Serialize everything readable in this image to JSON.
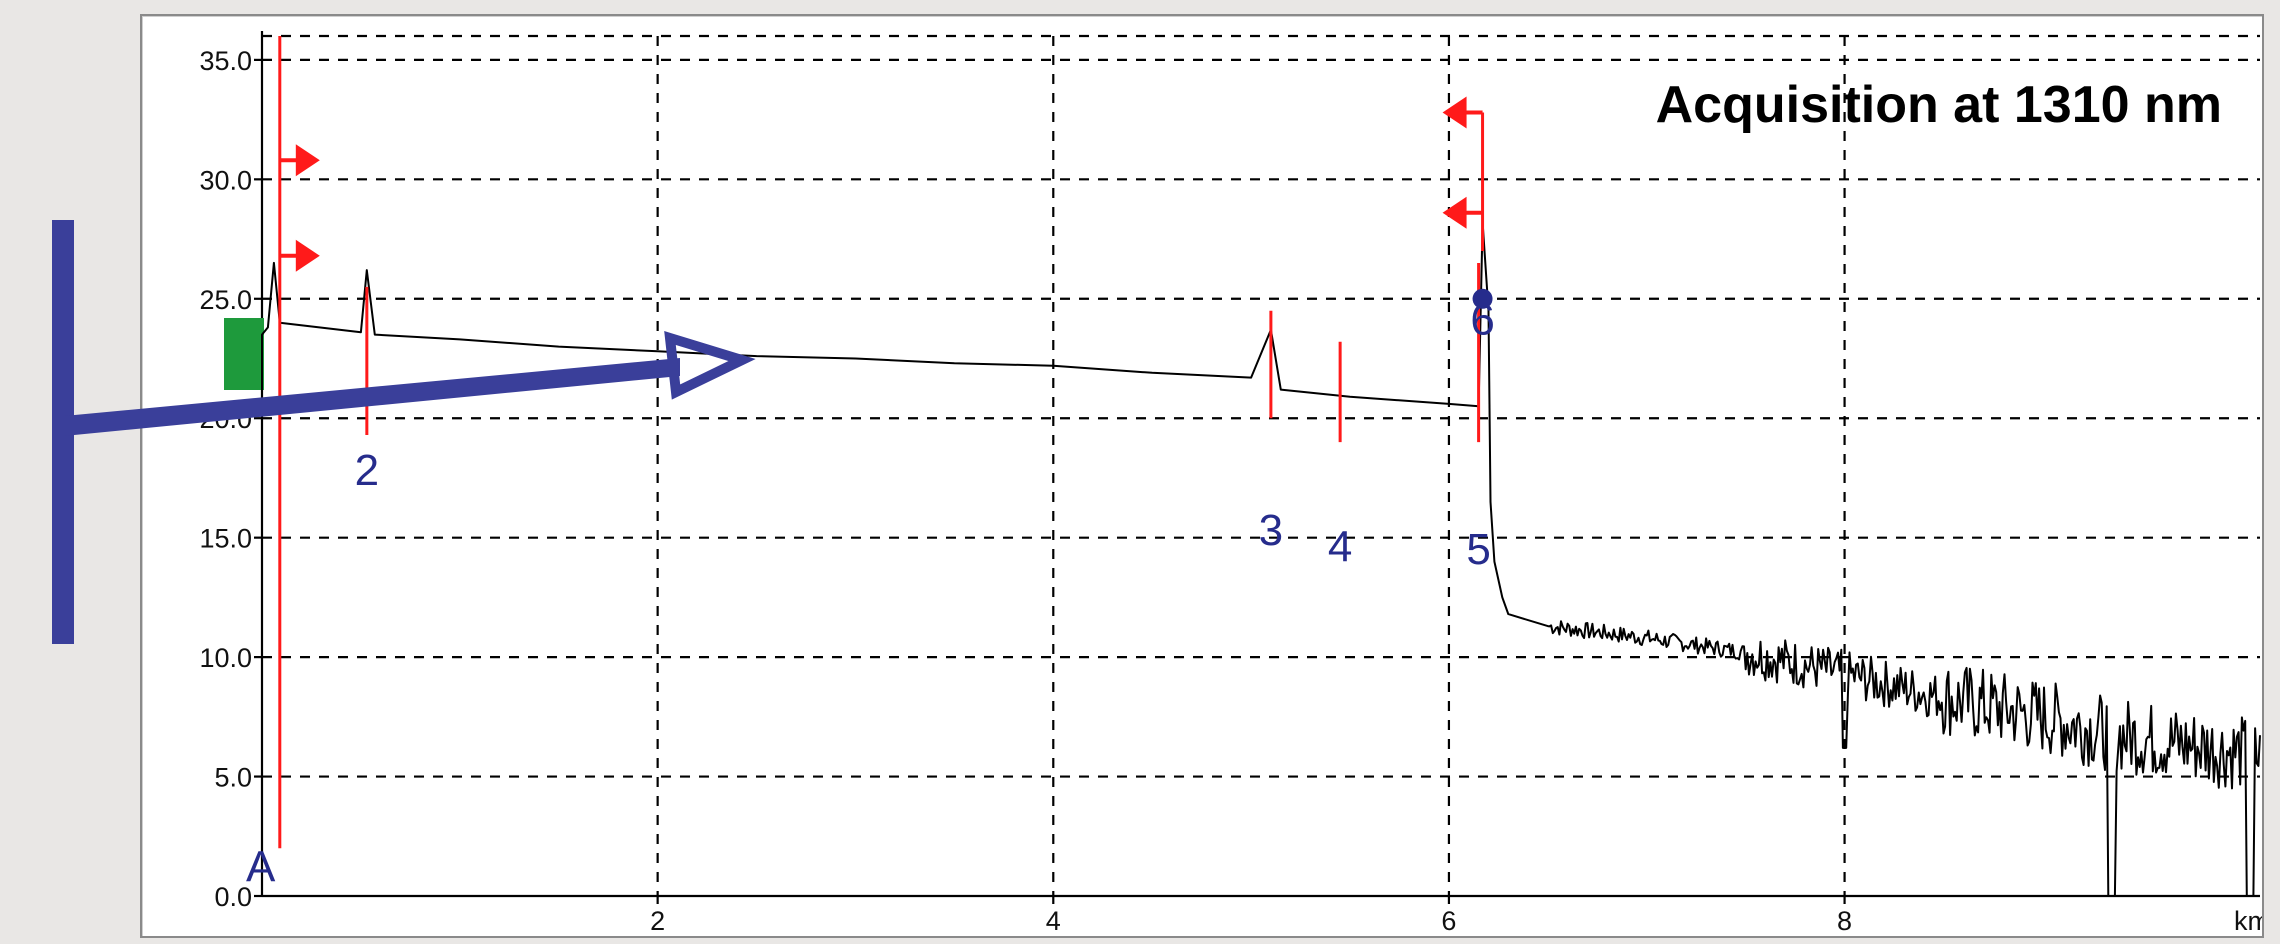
{
  "colors": {
    "background": "#e9e7e5",
    "plot_background": "#ffffff",
    "grid": "#000000",
    "trace": "#000000",
    "markers": "#ff1a1a",
    "event_labels": "#262c8c",
    "annotation_arrow": "#3a3f9a",
    "launch_block": "#1e9a3c"
  },
  "annotation": {
    "icon": "large-blue-t-arrow-icon",
    "description_label": ""
  },
  "chart_data": {
    "type": "line",
    "title": "Acquisition at 1310 nm",
    "xlabel": "km",
    "ylabel": "",
    "xlim": [
      0,
      10.1
    ],
    "ylim": [
      0,
      36
    ],
    "grid": true,
    "x_ticks": [
      2,
      4,
      6,
      8
    ],
    "x_tick_labels": [
      "2",
      "4",
      "6",
      "8"
    ],
    "x_unit_label": "km",
    "y_ticks": [
      0,
      5,
      10,
      15,
      20,
      25,
      30,
      35
    ],
    "y_tick_labels": [
      "0.0",
      "5.0",
      "10.0",
      "15.0",
      "20.0",
      "25.0",
      "30.0",
      "35.0"
    ],
    "series": [
      {
        "points": [
          [
            0.0,
            0.0
          ],
          [
            0.0,
            23.5
          ],
          [
            0.03,
            23.8
          ],
          [
            0.06,
            26.5
          ],
          [
            0.09,
            24.0
          ],
          [
            0.5,
            23.6
          ],
          [
            0.53,
            26.2
          ],
          [
            0.57,
            23.5
          ],
          [
            1.0,
            23.3
          ],
          [
            1.5,
            23.0
          ],
          [
            2.0,
            22.8
          ],
          [
            2.5,
            22.6
          ],
          [
            3.0,
            22.5
          ],
          [
            3.5,
            22.3
          ],
          [
            4.0,
            22.2
          ],
          [
            4.5,
            21.9
          ],
          [
            5.0,
            21.7
          ],
          [
            5.1,
            23.7
          ],
          [
            5.15,
            21.2
          ],
          [
            5.5,
            20.9
          ],
          [
            6.0,
            20.6
          ],
          [
            6.15,
            20.5
          ],
          [
            6.17,
            28.2
          ],
          [
            6.2,
            24.5
          ],
          [
            6.21,
            16.5
          ],
          [
            6.23,
            14.0
          ],
          [
            6.27,
            12.5
          ],
          [
            6.3,
            11.8
          ],
          [
            6.5,
            11.3
          ],
          [
            7.0,
            10.8
          ],
          [
            7.5,
            10.2
          ],
          [
            8.0,
            9.3
          ],
          [
            8.5,
            8.3
          ],
          [
            9.0,
            7.5
          ],
          [
            9.35,
            6.8
          ],
          [
            9.5,
            6.6
          ],
          [
            10.0,
            6.0
          ],
          [
            10.1,
            5.8
          ]
        ]
      }
    ],
    "events": [
      {
        "label": "A",
        "x": 0.0
      },
      {
        "label": "2",
        "x": 0.53
      },
      {
        "label": "3",
        "x": 5.1
      },
      {
        "label": "4",
        "x": 5.45
      },
      {
        "label": "5",
        "x": 6.15
      },
      {
        "label": "6",
        "x": 6.17
      }
    ]
  }
}
